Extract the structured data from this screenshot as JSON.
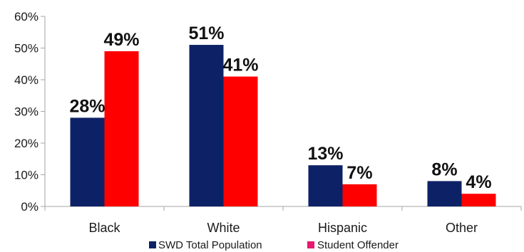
{
  "chart_data": {
    "type": "bar",
    "title": "",
    "xlabel": "",
    "ylabel": "",
    "categories": [
      "Black",
      "White",
      "Hispanic",
      "Other"
    ],
    "series": [
      {
        "name": "SWD Total Population",
        "values": [
          28,
          51,
          13,
          8
        ],
        "labels": [
          "28%",
          "51%",
          "13%",
          "8%"
        ],
        "color": "#0d2266"
      },
      {
        "name": "Student Offender",
        "values": [
          49,
          41,
          7,
          4
        ],
        "labels": [
          "49%",
          "41%",
          "7%",
          "4%"
        ],
        "color": "#ff0000"
      }
    ],
    "ylim": [
      0,
      60
    ],
    "yticks": [
      "0%",
      "10%",
      "20%",
      "30%",
      "40%",
      "50%",
      "60%"
    ],
    "grid": false,
    "legend": "bottom"
  },
  "colors": {
    "axis": "#a6a6a6",
    "legend_swatch_2": "#e8186e"
  }
}
